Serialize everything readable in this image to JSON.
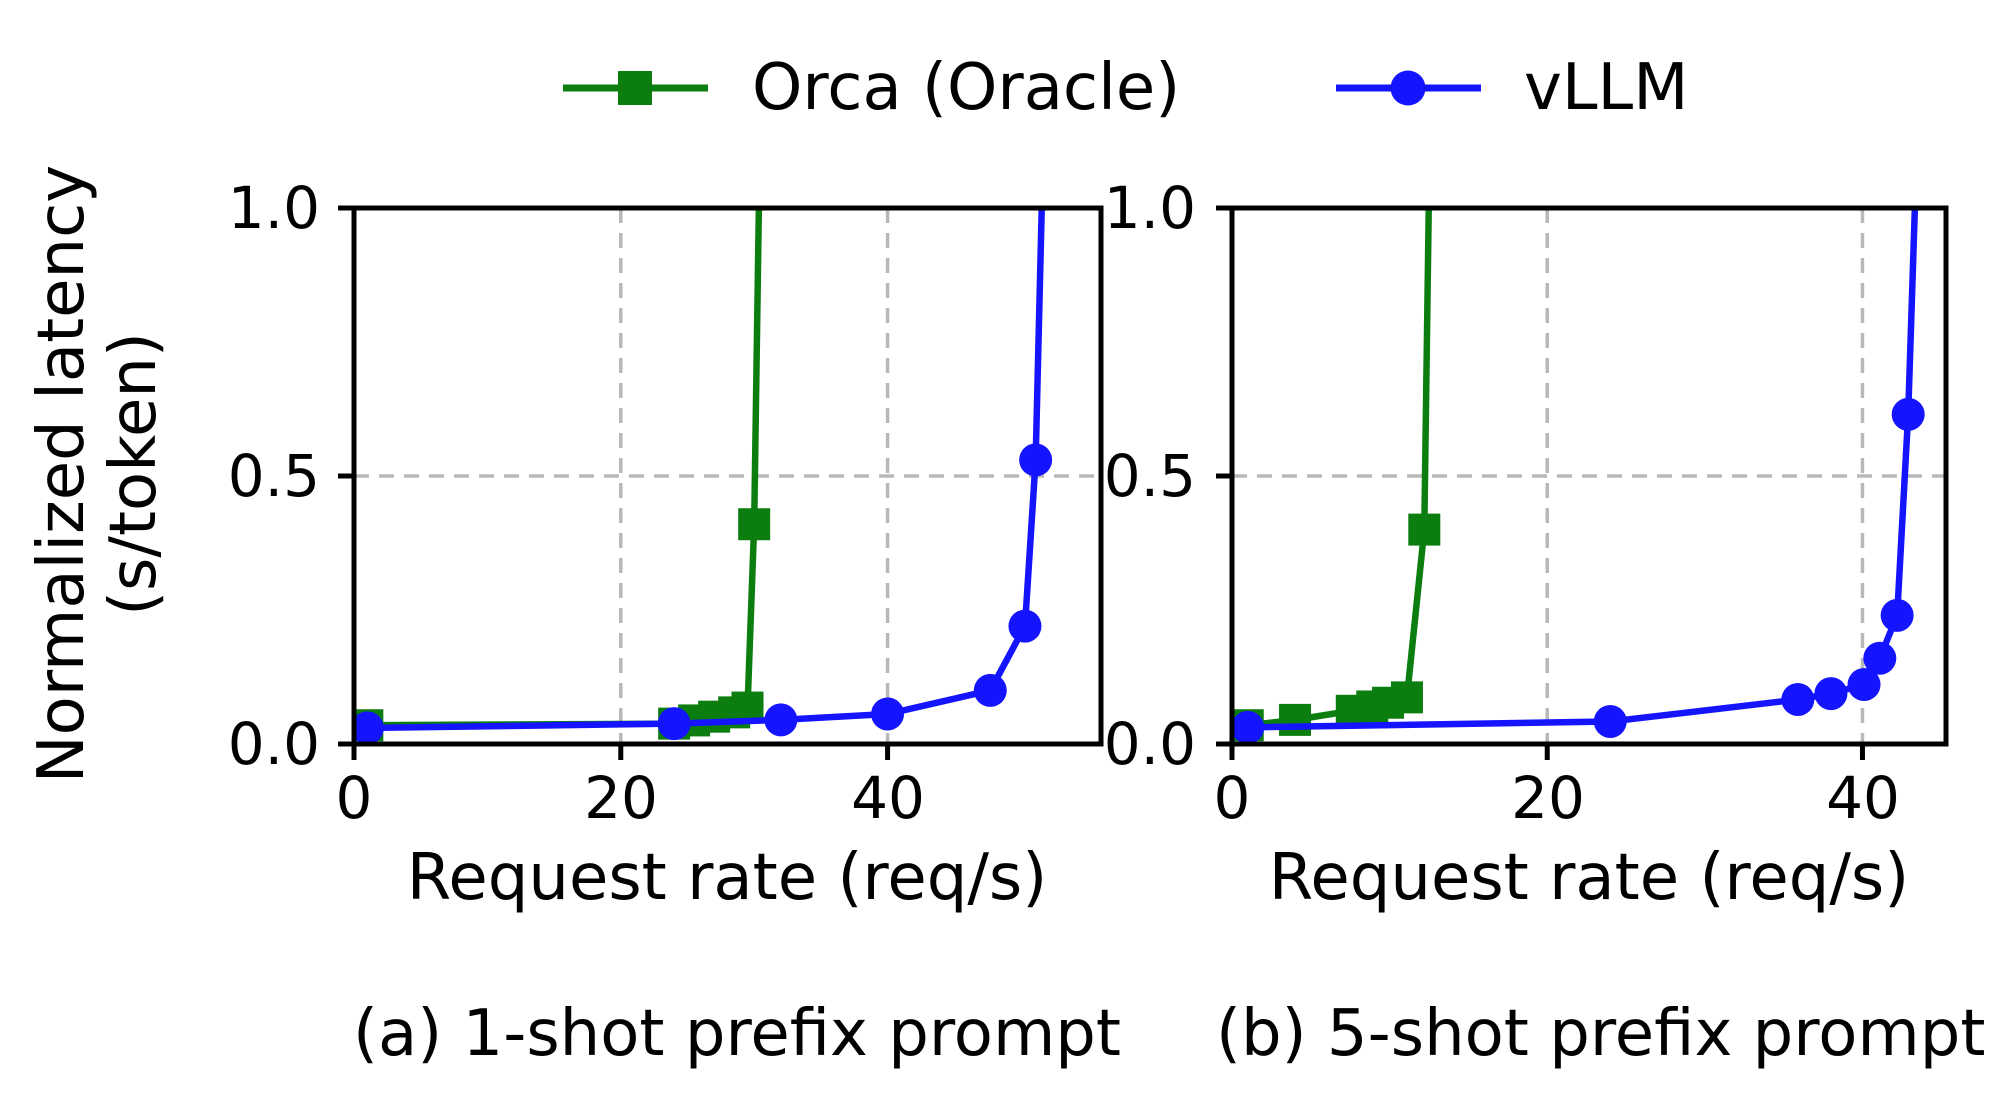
{
  "figure": {
    "ylabel_line1": "Normalized latency",
    "ylabel_line2": "(s/token)",
    "legend": {
      "items": [
        {
          "label": "Orca (Oracle)",
          "marker": "square",
          "color": "#0c7e10"
        },
        {
          "label": "vLLM",
          "marker": "circle",
          "color": "#1414ff"
        }
      ]
    },
    "colors": {
      "orca_green": "#0c7e10",
      "vllm_blue": "#1414ff",
      "grid_gray": "#b8b8b8",
      "axis_black": "#000000"
    }
  },
  "chart_data": [
    {
      "type": "line",
      "title": "(a) 1-shot prefix prompt",
      "xlabel": "Request rate (req/s)",
      "ylabel": "Normalized latency (s/token)",
      "xlim": [
        0,
        56
      ],
      "ylim": [
        0,
        1.0
      ],
      "xticks": [
        0,
        20,
        40
      ],
      "yticks": [
        0.0,
        0.5,
        1.0
      ],
      "xticklabels": [
        "0",
        "20",
        "40"
      ],
      "yticklabels": [
        "0.0",
        "0.5",
        "1.0"
      ],
      "grid": "dashed",
      "legend_position": "above-figure",
      "series": [
        {
          "name": "Orca (Oracle)",
          "color": "#0c7e10",
          "marker": "square",
          "x": [
            1,
            24,
            25.5,
            27,
            28.5,
            29.5,
            30,
            30.5
          ],
          "y": [
            0.035,
            0.038,
            0.044,
            0.051,
            0.059,
            0.068,
            0.41,
            1.25
          ]
        },
        {
          "name": "vLLM",
          "color": "#1414ff",
          "marker": "circle",
          "x": [
            1,
            24,
            32,
            40,
            47.7,
            50.3,
            51.1,
            51.8
          ],
          "y": [
            0.03,
            0.038,
            0.045,
            0.056,
            0.1,
            0.22,
            0.53,
            1.25
          ]
        }
      ]
    },
    {
      "type": "line",
      "title": "(b) 5-shot prefix prompt",
      "xlabel": "Request rate (req/s)",
      "ylabel": "Normalized latency (s/token)",
      "xlim": [
        0,
        45.3
      ],
      "ylim": [
        0,
        1.0
      ],
      "xticks": [
        0,
        20,
        40
      ],
      "yticks": [
        0.0,
        0.5,
        1.0
      ],
      "xticklabels": [
        "0",
        "20",
        "40"
      ],
      "yticklabels": [
        "0.0",
        "0.5",
        "1.0"
      ],
      "grid": "dashed",
      "legend_position": "above-figure",
      "series": [
        {
          "name": "Orca (Oracle)",
          "color": "#0c7e10",
          "marker": "square",
          "x": [
            1,
            4,
            7.6,
            8.9,
            9.9,
            11.1,
            12.2,
            12.6
          ],
          "y": [
            0.035,
            0.045,
            0.062,
            0.07,
            0.077,
            0.087,
            0.4,
            1.25
          ]
        },
        {
          "name": "vLLM",
          "color": "#1414ff",
          "marker": "circle",
          "x": [
            1,
            24,
            35.9,
            38,
            40.1,
            41.1,
            42.2,
            42.9,
            43.6
          ],
          "y": [
            0.031,
            0.042,
            0.083,
            0.094,
            0.111,
            0.16,
            0.24,
            0.615,
            1.25
          ]
        }
      ]
    }
  ]
}
